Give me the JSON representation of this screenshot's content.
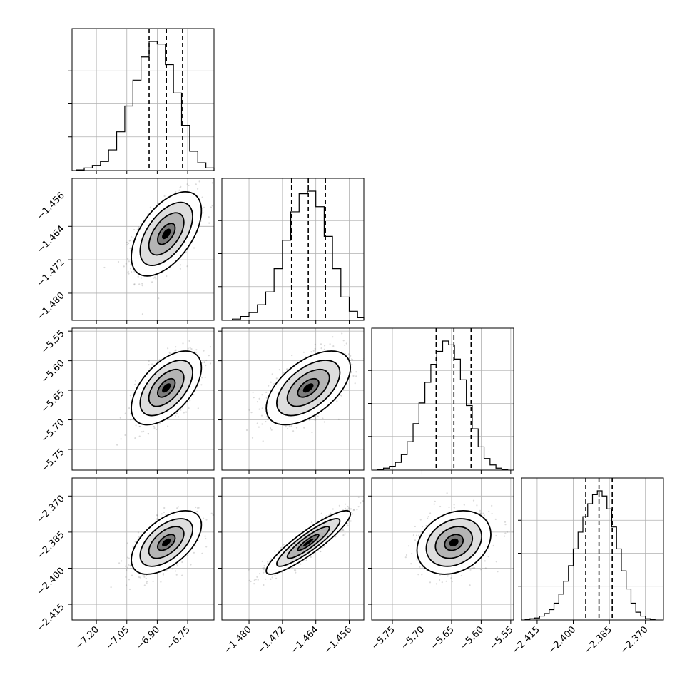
{
  "chart_data": {
    "type": "corner",
    "title": "",
    "parameters": [
      {
        "axis_range": [
          -7.32,
          -6.62
        ],
        "ticks": [
          -7.2,
          -7.05,
          -6.9,
          -6.75
        ],
        "tick_labels": [
          "−7.20",
          "−7.05",
          "−6.90",
          "−6.75"
        ],
        "mean": -6.855,
        "sd": 0.072,
        "quantiles": [
          -6.94,
          -6.855,
          -6.775
        ],
        "histogram": {
          "bin_edges": [
            -7.3,
            -7.26,
            -7.22,
            -7.18,
            -7.14,
            -7.1,
            -7.06,
            -7.02,
            -6.98,
            -6.94,
            -6.9,
            -6.86,
            -6.82,
            -6.78,
            -6.74,
            -6.7,
            -6.66,
            -6.62
          ],
          "heights": [
            0.005,
            0.02,
            0.04,
            0.07,
            0.16,
            0.3,
            0.5,
            0.7,
            0.88,
            1.0,
            0.98,
            0.82,
            0.6,
            0.35,
            0.15,
            0.06,
            0.02
          ]
        }
      },
      {
        "axis_range": [
          -1.4865,
          -1.4525
        ],
        "ticks": [
          -1.48,
          -1.472,
          -1.464,
          -1.456
        ],
        "tick_labels": [
          "−1.480",
          "−1.472",
          "−1.464",
          "−1.456"
        ],
        "mean": -1.4658,
        "sd": 0.0042,
        "quantiles": [
          -1.4698,
          -1.4658,
          -1.4617
        ],
        "histogram": {
          "bin_edges": [
            -1.484,
            -1.482,
            -1.48,
            -1.478,
            -1.476,
            -1.474,
            -1.472,
            -1.47,
            -1.468,
            -1.466,
            -1.464,
            -1.462,
            -1.46,
            -1.458,
            -1.456,
            -1.454,
            -1.4525
          ],
          "heights": [
            0.01,
            0.03,
            0.06,
            0.12,
            0.22,
            0.4,
            0.62,
            0.84,
            0.98,
            1.0,
            0.88,
            0.65,
            0.4,
            0.18,
            0.07,
            0.02
          ]
        }
      },
      {
        "axis_range": [
          -5.785,
          -5.545
        ],
        "ticks": [
          -5.75,
          -5.7,
          -5.65,
          -5.6,
          -5.55
        ],
        "tick_labels": [
          "−5.75",
          "−5.70",
          "−5.65",
          "−5.60",
          "−5.55"
        ],
        "mean": -5.646,
        "sd": 0.026,
        "quantiles": [
          -5.676,
          -5.646,
          -5.617
        ],
        "histogram": {
          "bin_edges": [
            -5.775,
            -5.765,
            -5.755,
            -5.745,
            -5.735,
            -5.725,
            -5.715,
            -5.705,
            -5.695,
            -5.685,
            -5.675,
            -5.665,
            -5.655,
            -5.645,
            -5.635,
            -5.625,
            -5.615,
            -5.605,
            -5.595,
            -5.585,
            -5.575,
            -5.565,
            -5.555
          ],
          "heights": [
            0.005,
            0.015,
            0.03,
            0.06,
            0.12,
            0.22,
            0.36,
            0.52,
            0.68,
            0.82,
            0.92,
            1.0,
            0.97,
            0.86,
            0.7,
            0.5,
            0.32,
            0.18,
            0.09,
            0.04,
            0.015,
            0.005
          ]
        }
      },
      {
        "axis_range": [
          -2.4215,
          -2.3625
        ],
        "ticks": [
          -2.415,
          -2.4,
          -2.385,
          -2.37
        ],
        "tick_labels": [
          "−2.415",
          "−2.400",
          "−2.385",
          "−2.370"
        ],
        "mean": -2.3893,
        "sd": 0.0055,
        "quantiles": [
          -2.3948,
          -2.3893,
          -2.3838
        ],
        "histogram": {
          "bin_edges": [
            -2.42,
            -2.418,
            -2.416,
            -2.414,
            -2.412,
            -2.41,
            -2.408,
            -2.406,
            -2.404,
            -2.402,
            -2.4,
            -2.398,
            -2.396,
            -2.394,
            -2.392,
            -2.39,
            -2.388,
            -2.386,
            -2.384,
            -2.382,
            -2.38,
            -2.378,
            -2.376,
            -2.374,
            -2.372,
            -2.37,
            -2.368,
            -2.366
          ],
          "heights": [
            0.005,
            0.01,
            0.015,
            0.03,
            0.05,
            0.08,
            0.13,
            0.2,
            0.3,
            0.42,
            0.55,
            0.68,
            0.8,
            0.9,
            0.97,
            1.0,
            0.96,
            0.86,
            0.72,
            0.55,
            0.38,
            0.24,
            0.13,
            0.06,
            0.03,
            0.01,
            0.005
          ]
        }
      }
    ],
    "pairs": [
      {
        "x": 0,
        "y": 1,
        "correlation": 0.55
      },
      {
        "x": 0,
        "y": 2,
        "correlation": 0.55
      },
      {
        "x": 1,
        "y": 2,
        "correlation": 0.55
      },
      {
        "x": 0,
        "y": 3,
        "correlation": 0.55
      },
      {
        "x": 1,
        "y": 3,
        "correlation": 0.9
      },
      {
        "x": 2,
        "y": 3,
        "correlation": 0.25
      }
    ],
    "contour_levels_sigma": [
      0.5,
      1.0,
      1.5,
      2.0
    ],
    "grid": true,
    "colors": {
      "line": "#000000",
      "grid": "#b0b0b0",
      "scatter": "#555555"
    }
  }
}
